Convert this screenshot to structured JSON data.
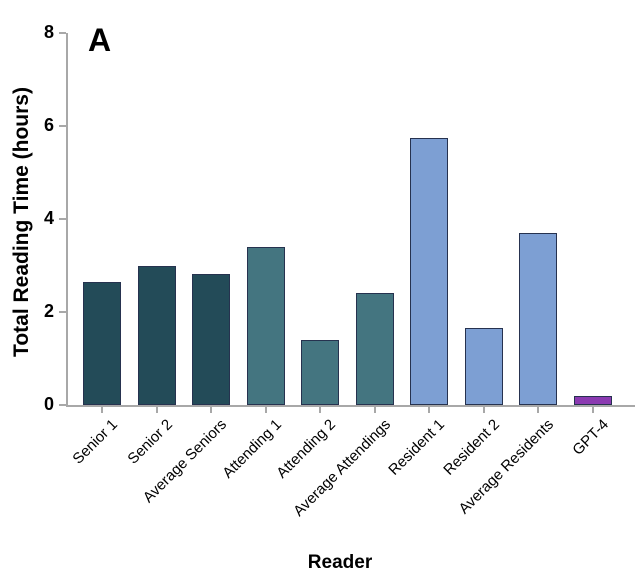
{
  "panel_label": "A",
  "chart_data": {
    "type": "bar",
    "title": "",
    "xlabel": "Reader",
    "ylabel": "Total Reading Time (hours)",
    "ylim": [
      0,
      8
    ],
    "yticks": [
      0,
      2,
      4,
      6,
      8
    ],
    "grid": false,
    "legend": "none",
    "categories": [
      "Senior 1",
      "Senior 2",
      "Average Seniors",
      "Attending 1",
      "Attending 2",
      "Average Attendings",
      "Resident 1",
      "Resident 2",
      "Average Residents",
      "GPT-4"
    ],
    "values": [
      2.65,
      3.0,
      2.82,
      3.4,
      1.4,
      2.4,
      5.75,
      1.65,
      3.7,
      0.2
    ],
    "colors": [
      "#234b58",
      "#234b58",
      "#234b58",
      "#447580",
      "#447580",
      "#447580",
      "#7d9fd3",
      "#7d9fd3",
      "#7d9fd3",
      "#8b3ab1"
    ],
    "bar_edge_color": "#26324f",
    "axis_color": "#a8a8a8"
  }
}
